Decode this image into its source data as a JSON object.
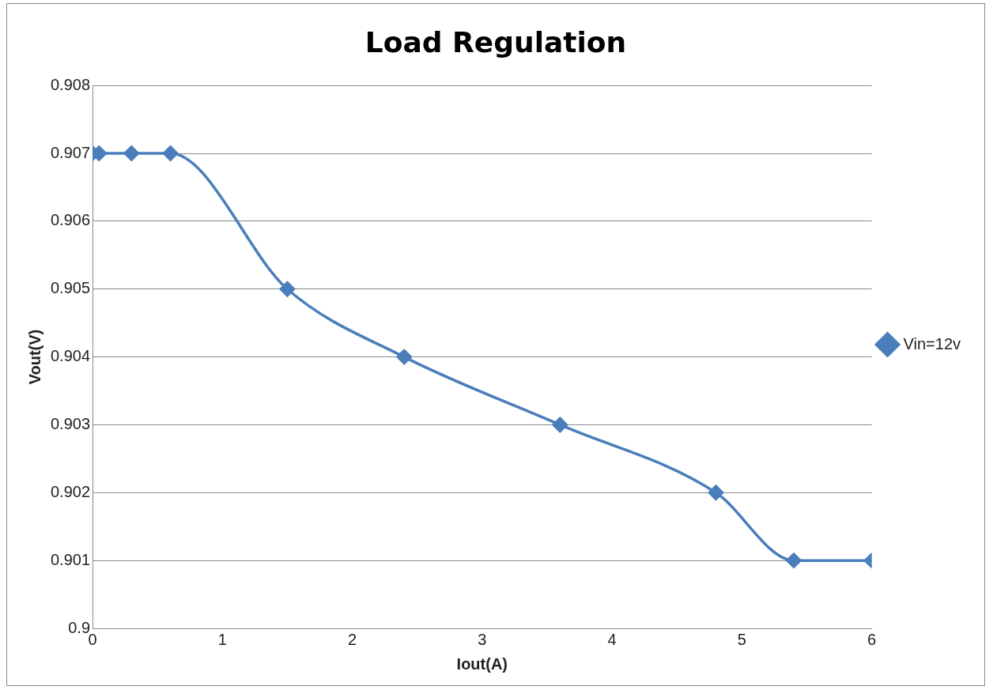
{
  "chart_data": {
    "type": "line",
    "title": "Load Regulation",
    "xlabel": "Iout(A)",
    "ylabel": "Vout(V)",
    "x": [
      0,
      0.05,
      0.3,
      0.6,
      1.5,
      2.4,
      3.6,
      4.8,
      5.4,
      6
    ],
    "series": [
      {
        "name": "Vin=12v",
        "color": "#4a7ebb",
        "values": [
          0.907,
          0.907,
          0.907,
          0.907,
          0.905,
          0.904,
          0.903,
          0.902,
          0.901,
          0.901
        ]
      }
    ],
    "xlim": [
      0,
      6
    ],
    "xticks": [
      0,
      1,
      2,
      3,
      4,
      5,
      6
    ],
    "ylim": [
      0.9,
      0.908
    ],
    "yticks": [
      0.9,
      0.901,
      0.902,
      0.903,
      0.904,
      0.905,
      0.906,
      0.907,
      0.908
    ],
    "grid": "y",
    "legend": "right",
    "marker": "diamond",
    "line_style": "solid"
  }
}
